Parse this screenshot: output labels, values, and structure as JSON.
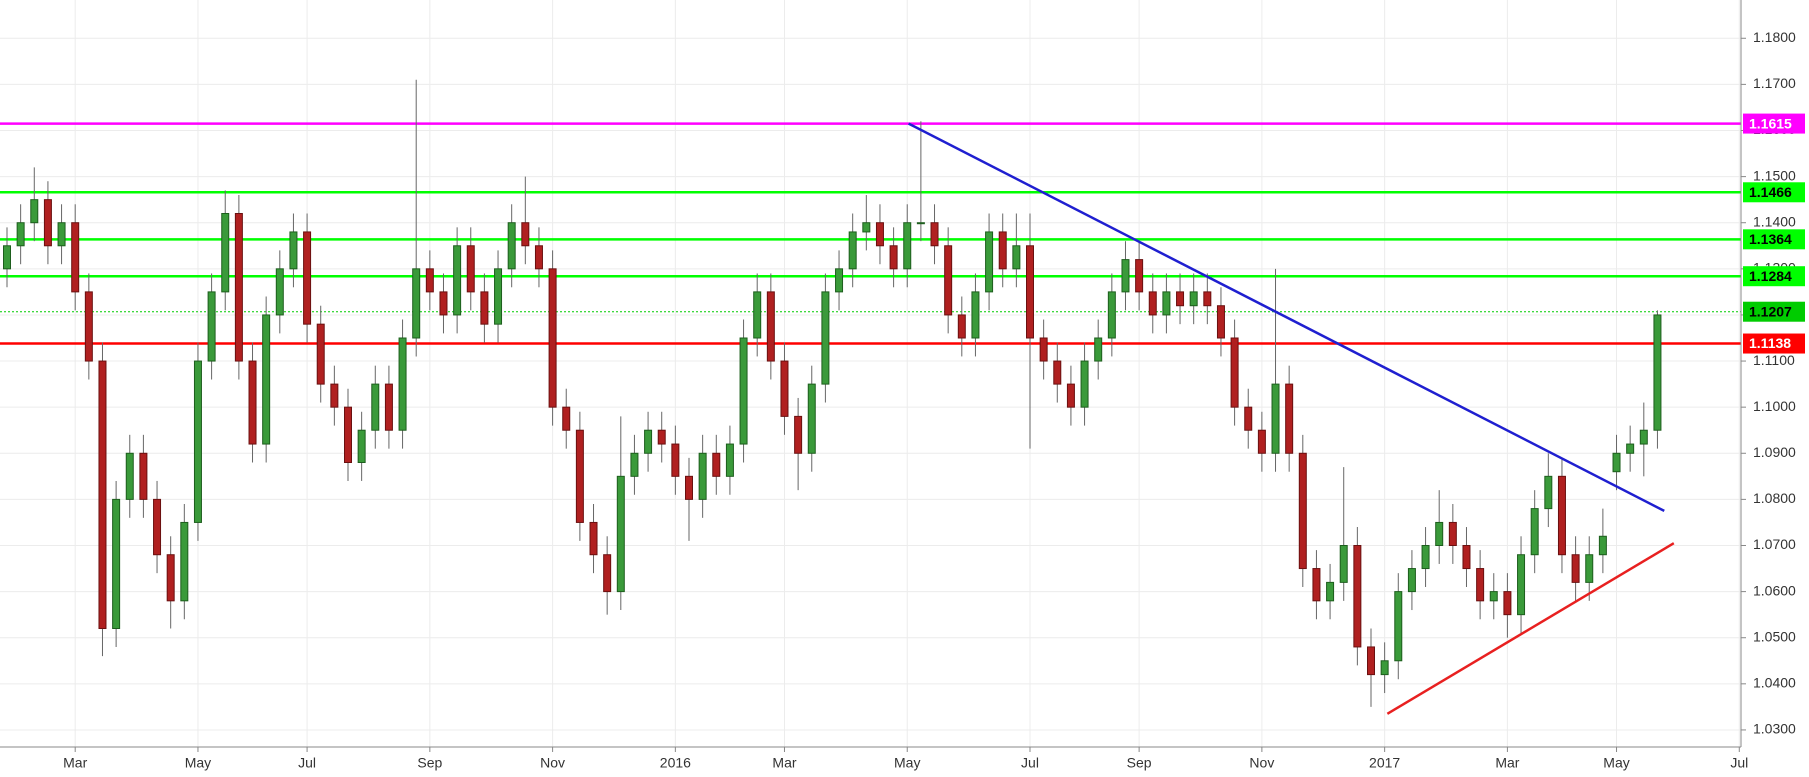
{
  "chart_data": {
    "type": "candlestick",
    "categories": [
      null,
      null,
      null,
      null,
      null,
      "Mar",
      null,
      null,
      null,
      null,
      null,
      null,
      null,
      null,
      "May",
      null,
      null,
      null,
      null,
      null,
      null,
      null,
      "Jul",
      null,
      null,
      null,
      null,
      null,
      null,
      null,
      null,
      "Sep",
      null,
      null,
      null,
      null,
      null,
      null,
      null,
      null,
      "Nov",
      null,
      null,
      null,
      null,
      null,
      null,
      null,
      null,
      "2016",
      null,
      null,
      null,
      null,
      null,
      null,
      null,
      "Mar",
      null,
      null,
      null,
      null,
      null,
      null,
      null,
      null,
      "May",
      null,
      null,
      null,
      null,
      null,
      null,
      null,
      null,
      "Jul",
      null,
      null,
      null,
      null,
      null,
      null,
      null,
      "Sep",
      null,
      null,
      null,
      null,
      null,
      null,
      null,
      null,
      "Nov",
      null,
      null,
      null,
      null,
      null,
      null,
      null,
      null,
      "2017",
      null,
      null,
      null,
      null,
      null,
      null,
      null,
      null,
      "Mar",
      null,
      null,
      null,
      null,
      null,
      null,
      null,
      "May",
      null,
      null,
      null,
      null,
      null,
      null,
      null,
      null,
      "Jul"
    ],
    "open": [
      1.13,
      1.135,
      1.14,
      1.145,
      1.135,
      1.14,
      1.125,
      1.11,
      1.052,
      1.08,
      1.09,
      1.08,
      1.068,
      1.058,
      1.075,
      1.11,
      1.125,
      1.142,
      1.11,
      1.092,
      1.12,
      1.13,
      1.138,
      1.118,
      1.105,
      1.1,
      1.088,
      1.095,
      1.105,
      1.095,
      1.115,
      1.13,
      1.125,
      1.12,
      1.135,
      1.125,
      1.118,
      1.13,
      1.14,
      1.135,
      1.13,
      1.1,
      1.095,
      1.075,
      1.068,
      1.06,
      1.085,
      1.09,
      1.095,
      1.092,
      1.085,
      1.08,
      1.09,
      1.085,
      1.092,
      1.115,
      1.125,
      1.11,
      1.098,
      1.09,
      1.105,
      1.125,
      1.13,
      1.138,
      1.14,
      1.135,
      1.13,
      1.14,
      1.14,
      1.135,
      1.12,
      1.115,
      1.125,
      1.138,
      1.13,
      1.135,
      1.115,
      1.11,
      1.105,
      1.1,
      1.11,
      1.115,
      1.125,
      1.132,
      1.125,
      1.12,
      1.125,
      1.122,
      1.125,
      1.122,
      1.115,
      1.1,
      1.095,
      1.09,
      1.105,
      1.09,
      1.065,
      1.058,
      1.062,
      1.07,
      1.048,
      1.042,
      1.045,
      1.06,
      1.065,
      1.07,
      1.075,
      1.07,
      1.065,
      1.058,
      1.06,
      1.055,
      1.068,
      1.078,
      1.085,
      1.068,
      1.062,
      1.068,
      1.086,
      1.09,
      1.092,
      1.095,
      null,
      null,
      null,
      null,
      null,
      null
    ],
    "high": [
      1.139,
      1.144,
      1.152,
      1.149,
      1.144,
      1.144,
      1.129,
      1.114,
      1.084,
      1.094,
      1.094,
      1.084,
      1.072,
      1.079,
      1.114,
      1.129,
      1.147,
      1.146,
      1.114,
      1.124,
      1.134,
      1.142,
      1.142,
      1.122,
      1.109,
      1.104,
      1.099,
      1.109,
      1.109,
      1.119,
      1.171,
      1.134,
      1.129,
      1.139,
      1.139,
      1.129,
      1.134,
      1.144,
      1.15,
      1.139,
      1.134,
      1.104,
      1.099,
      1.079,
      1.072,
      1.098,
      1.094,
      1.099,
      1.099,
      1.096,
      1.089,
      1.094,
      1.094,
      1.096,
      1.119,
      1.129,
      1.129,
      1.114,
      1.102,
      1.109,
      1.129,
      1.134,
      1.142,
      1.146,
      1.144,
      1.139,
      1.144,
      1.162,
      1.144,
      1.139,
      1.124,
      1.129,
      1.142,
      1.142,
      1.142,
      1.142,
      1.119,
      1.114,
      1.109,
      1.114,
      1.119,
      1.129,
      1.136,
      1.136,
      1.129,
      1.129,
      1.129,
      1.129,
      1.129,
      1.126,
      1.119,
      1.104,
      1.099,
      1.13,
      1.109,
      1.094,
      1.069,
      1.066,
      1.087,
      1.074,
      1.052,
      1.049,
      1.064,
      1.069,
      1.074,
      1.082,
      1.079,
      1.074,
      1.069,
      1.064,
      1.064,
      1.072,
      1.082,
      1.09,
      1.089,
      1.072,
      1.072,
      1.078,
      1.094,
      1.096,
      1.101,
      1.121,
      null,
      null,
      null,
      null,
      null,
      null
    ],
    "low": [
      1.126,
      1.131,
      1.136,
      1.131,
      1.131,
      1.121,
      1.106,
      1.046,
      1.048,
      1.076,
      1.076,
      1.064,
      1.052,
      1.054,
      1.071,
      1.106,
      1.121,
      1.106,
      1.088,
      1.088,
      1.116,
      1.126,
      1.114,
      1.101,
      1.096,
      1.084,
      1.084,
      1.091,
      1.091,
      1.091,
      1.111,
      1.121,
      1.116,
      1.116,
      1.121,
      1.114,
      1.114,
      1.126,
      1.131,
      1.126,
      1.096,
      1.091,
      1.071,
      1.064,
      1.055,
      1.056,
      1.081,
      1.086,
      1.088,
      1.081,
      1.071,
      1.076,
      1.081,
      1.081,
      1.088,
      1.111,
      1.106,
      1.094,
      1.082,
      1.086,
      1.101,
      1.121,
      1.126,
      1.134,
      1.131,
      1.126,
      1.126,
      1.136,
      1.131,
      1.116,
      1.111,
      1.111,
      1.121,
      1.126,
      1.126,
      1.091,
      1.106,
      1.101,
      1.096,
      1.096,
      1.106,
      1.111,
      1.121,
      1.121,
      1.116,
      1.116,
      1.118,
      1.118,
      1.118,
      1.111,
      1.096,
      1.091,
      1.086,
      1.086,
      1.086,
      1.061,
      1.054,
      1.054,
      1.058,
      1.044,
      1.035,
      1.038,
      1.041,
      1.056,
      1.061,
      1.066,
      1.066,
      1.061,
      1.054,
      1.054,
      1.05,
      1.051,
      1.064,
      1.074,
      1.064,
      1.058,
      1.058,
      1.064,
      1.082,
      1.086,
      1.085,
      1.091,
      null,
      null,
      null,
      null,
      null,
      null
    ],
    "close": [
      1.135,
      1.14,
      1.145,
      1.135,
      1.14,
      1.125,
      1.11,
      1.052,
      1.08,
      1.09,
      1.08,
      1.068,
      1.058,
      1.075,
      1.11,
      1.125,
      1.142,
      1.11,
      1.092,
      1.12,
      1.13,
      1.138,
      1.118,
      1.105,
      1.1,
      1.088,
      1.095,
      1.105,
      1.095,
      1.115,
      1.13,
      1.125,
      1.12,
      1.135,
      1.125,
      1.118,
      1.13,
      1.14,
      1.135,
      1.13,
      1.1,
      1.095,
      1.075,
      1.068,
      1.06,
      1.085,
      1.09,
      1.095,
      1.092,
      1.085,
      1.08,
      1.09,
      1.085,
      1.092,
      1.115,
      1.125,
      1.11,
      1.098,
      1.09,
      1.105,
      1.125,
      1.13,
      1.138,
      1.14,
      1.135,
      1.13,
      1.14,
      1.14,
      1.135,
      1.12,
      1.115,
      1.125,
      1.138,
      1.13,
      1.135,
      1.115,
      1.11,
      1.105,
      1.1,
      1.11,
      1.115,
      1.125,
      1.132,
      1.125,
      1.12,
      1.125,
      1.122,
      1.125,
      1.122,
      1.115,
      1.1,
      1.095,
      1.09,
      1.105,
      1.09,
      1.065,
      1.058,
      1.062,
      1.07,
      1.048,
      1.042,
      1.045,
      1.06,
      1.065,
      1.07,
      1.075,
      1.07,
      1.065,
      1.058,
      1.06,
      1.055,
      1.068,
      1.078,
      1.085,
      1.068,
      1.062,
      1.068,
      1.072,
      1.09,
      1.092,
      1.095,
      1.12,
      null,
      null,
      null,
      null,
      null,
      null
    ],
    "up_color": "#3a9a3a",
    "down_color": "#b02020",
    "ylim": [
      1.0263,
      1.1883
    ],
    "yticks": [
      {
        "value": 1.03,
        "label": "1.0300"
      },
      {
        "value": 1.04,
        "label": "1.0400"
      },
      {
        "value": 1.05,
        "label": "1.0500"
      },
      {
        "value": 1.06,
        "label": "1.0600"
      },
      {
        "value": 1.07,
        "label": "1.0700"
      },
      {
        "value": 1.08,
        "label": "1.0800"
      },
      {
        "value": 1.09,
        "label": "1.0900"
      },
      {
        "value": 1.1,
        "label": "1.1000"
      },
      {
        "value": 1.11,
        "label": "1.1100"
      },
      {
        "value": 1.12,
        "label": "1.1200"
      },
      {
        "value": 1.13,
        "label": "1.1300"
      },
      {
        "value": 1.14,
        "label": "1.1400"
      },
      {
        "value": 1.15,
        "label": "1.1500"
      },
      {
        "value": 1.16,
        "label": "1.1600"
      },
      {
        "value": 1.17,
        "label": "1.1700"
      },
      {
        "value": 1.18,
        "label": "1.1800"
      }
    ],
    "grid": true,
    "levels": [
      {
        "value": 1.1615,
        "color": "#ff00ff",
        "label_color": "#ffffff"
      },
      {
        "value": 1.1466,
        "color": "#00ff00",
        "label_color": "#000000"
      },
      {
        "value": 1.1364,
        "color": "#00ff00",
        "label_color": "#000000"
      },
      {
        "value": 1.1284,
        "color": "#00ff00",
        "label_color": "#000000"
      },
      {
        "value": 1.1207,
        "color": "#00cc00",
        "label_color": "#000000",
        "style": "dotted"
      },
      {
        "value": 1.1138,
        "color": "#ff0000",
        "label_color": "#ffffff"
      }
    ],
    "trendlines": [
      {
        "color": "#1f1fd0",
        "start": [
          66.1,
          1.1615
        ],
        "end": [
          121.5,
          1.0775
        ]
      },
      {
        "color": "#e82020",
        "start": [
          101.2,
          1.0335
        ],
        "end": [
          122.2,
          1.0705
        ]
      }
    ]
  }
}
